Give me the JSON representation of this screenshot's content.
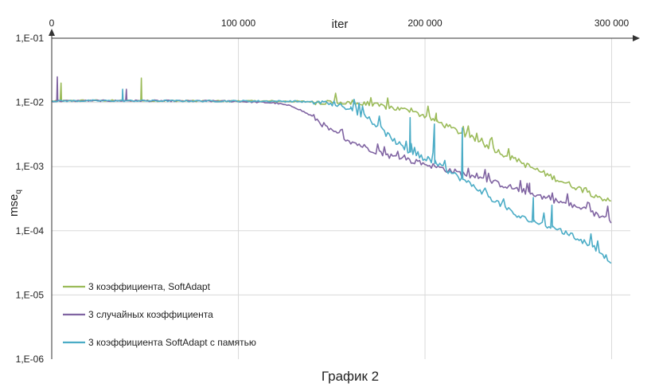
{
  "chart_data": {
    "type": "line",
    "caption": "График 2",
    "xlabel": "iter",
    "ylabel": "mse",
    "ylabel_sub": "q",
    "x_scale": "linear",
    "y_scale": "log",
    "xlim": [
      0,
      310000
    ],
    "ylim": [
      1e-06,
      0.1
    ],
    "x_ticks": [
      {
        "value": 0,
        "label": "0"
      },
      {
        "value": 100000,
        "label": "100 000"
      },
      {
        "value": 200000,
        "label": "200 000"
      },
      {
        "value": 300000,
        "label": "300 000"
      }
    ],
    "y_ticks": [
      {
        "value": 0.1,
        "label": "1,E-01"
      },
      {
        "value": 0.01,
        "label": "1,E-02"
      },
      {
        "value": 0.001,
        "label": "1,E-03"
      },
      {
        "value": 0.0001,
        "label": "1,E-04"
      },
      {
        "value": 1e-05,
        "label": "1,E-05"
      },
      {
        "value": 1e-06,
        "label": "1,E-06"
      }
    ],
    "grid": "vertical and horizontal",
    "legend_position": "bottom-left",
    "series": [
      {
        "name": "3 коэффициента, SoftAdapt",
        "color": "#9BBB59",
        "x": [
          0,
          20000,
          50000,
          100000,
          130000,
          150000,
          160000,
          180000,
          190000,
          200000,
          210000,
          225000,
          250000,
          270000,
          300000
        ],
        "y": [
          0.0105,
          0.0107,
          0.0106,
          0.0105,
          0.0104,
          0.0101,
          0.0098,
          0.0085,
          0.0075,
          0.0062,
          0.0045,
          0.0028,
          0.0012,
          0.00065,
          0.00028
        ],
        "spikes": [
          {
            "x": 5000,
            "y": 0.02
          },
          {
            "x": 48000,
            "y": 0.024
          },
          {
            "x": 206000,
            "y": 0.0068
          }
        ]
      },
      {
        "name": "3 случайных коэффициента",
        "color": "#8064A2",
        "x": [
          0,
          20000,
          50000,
          80000,
          100000,
          120000,
          130000,
          140000,
          150000,
          160000,
          170000,
          180000,
          200000,
          230000,
          260000,
          280000,
          300000
        ],
        "y": [
          0.0105,
          0.0106,
          0.0106,
          0.0105,
          0.0104,
          0.0098,
          0.0085,
          0.006,
          0.0035,
          0.0025,
          0.0019,
          0.0015,
          0.0011,
          0.00065,
          0.00036,
          0.00024,
          0.000145
        ],
        "spikes": [
          {
            "x": 3000,
            "y": 0.025
          },
          {
            "x": 40000,
            "y": 0.016
          },
          {
            "x": 256000,
            "y": 0.00055
          }
        ]
      },
      {
        "name": "3 коэффициента SoftAdapt с памятью",
        "color": "#4BACC6",
        "x": [
          0,
          20000,
          50000,
          80000,
          100000,
          130000,
          150000,
          160000,
          170000,
          180000,
          190000,
          200000,
          210000,
          230000,
          250000,
          270000,
          290000,
          300000
        ],
        "y": [
          0.0105,
          0.0106,
          0.0106,
          0.0105,
          0.0105,
          0.0104,
          0.0098,
          0.0082,
          0.0055,
          0.0031,
          0.0018,
          0.0013,
          0.00095,
          0.00042,
          0.000165,
          0.00011,
          5.8e-05,
          3.3e-05
        ],
        "spikes": [
          {
            "x": 38000,
            "y": 0.016
          },
          {
            "x": 160000,
            "y": 0.008
          },
          {
            "x": 192000,
            "y": 0.0058
          },
          {
            "x": 205000,
            "y": 0.0046
          },
          {
            "x": 220000,
            "y": 0.004
          },
          {
            "x": 258000,
            "y": 0.00033
          },
          {
            "x": 268000,
            "y": 0.00025
          }
        ]
      }
    ]
  }
}
